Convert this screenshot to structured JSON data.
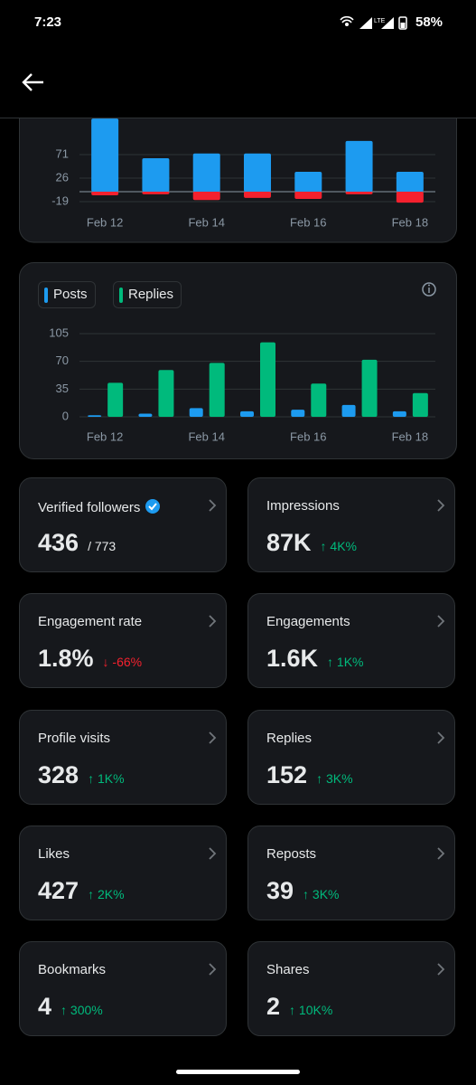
{
  "status_bar": {
    "time": "7:23",
    "battery": "58%"
  },
  "chart_data": [
    {
      "type": "bar",
      "stacked": true,
      "categories": [
        "Feb 12",
        null,
        "Feb 14",
        null,
        "Feb 16",
        null,
        "Feb 18"
      ],
      "series": [
        {
          "color": "#1d9bf0",
          "values": [
            140,
            64,
            73,
            73,
            38,
            97,
            38
          ]
        },
        {
          "color": "#f4212e",
          "values": [
            -7,
            -5,
            -16,
            -12,
            -14,
            -5,
            -21
          ]
        }
      ],
      "ylim": [
        -30,
        150
      ],
      "yticks": [
        -19,
        26,
        71
      ],
      "grid": true
    },
    {
      "type": "bar",
      "stacked": false,
      "categories": [
        "Feb 12",
        null,
        "Feb 14",
        null,
        "Feb 16",
        null,
        "Feb 18"
      ],
      "series": [
        {
          "name": "Posts",
          "color": "#1d9bf0",
          "values": [
            2,
            4,
            11,
            7,
            9,
            15,
            7
          ]
        },
        {
          "name": "Replies",
          "color": "#00ba7c",
          "values": [
            43,
            59,
            68,
            94,
            42,
            72,
            30
          ]
        }
      ],
      "ylim": [
        0,
        105
      ],
      "yticks": [
        0,
        35,
        70,
        105
      ],
      "grid": true
    }
  ],
  "cards": [
    {
      "title": "Verified followers",
      "value": "436",
      "total": "/ 773"
    },
    {
      "title": "Impressions",
      "value": "87K",
      "delta": "↑ 4K%"
    },
    {
      "title": "Engagement rate",
      "value": "1.8%",
      "delta": "↓ -66%"
    },
    {
      "title": "Engagements",
      "value": "1.6K",
      "delta": "↑ 1K%"
    },
    {
      "title": "Profile visits",
      "value": "328",
      "delta": "↑ 1K%"
    },
    {
      "title": "Replies",
      "value": "152",
      "delta": "↑ 3K%"
    },
    {
      "title": "Likes",
      "value": "427",
      "delta": "↑ 2K%"
    },
    {
      "title": "Reposts",
      "value": "39",
      "delta": "↑ 3K%"
    },
    {
      "title": "Bookmarks",
      "value": "4",
      "delta": "↑ 300%"
    },
    {
      "title": "Shares",
      "value": "2",
      "delta": "↑ 10K%"
    }
  ]
}
